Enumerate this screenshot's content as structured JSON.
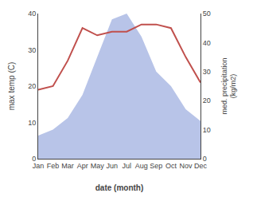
{
  "chart_data": {
    "type": "line",
    "xlabel": "date (month)",
    "ylabel": "max temp (C)",
    "y2label": "med. precipitation\n(kg/m2)",
    "categories": [
      "Jan",
      "Feb",
      "Mar",
      "Apr",
      "May",
      "Jun",
      "Jul",
      "Aug",
      "Sep",
      "Oct",
      "Nov",
      "Dec"
    ],
    "series": [
      {
        "type": "area",
        "axis": "y2",
        "color": "#b8c4e8",
        "values": [
          8,
          10,
          14,
          22,
          35,
          48,
          50,
          42,
          30,
          25,
          17,
          13
        ]
      },
      {
        "type": "line",
        "color": "#c0504d",
        "values": [
          19,
          20,
          27,
          36,
          34,
          35,
          35,
          37,
          37,
          36,
          28,
          21
        ]
      }
    ],
    "ylim": [
      0,
      40
    ],
    "yticks": [
      0,
      10,
      20,
      30,
      40
    ],
    "y2lim": [
      0,
      50
    ],
    "y2ticks": [
      0,
      10,
      20,
      30,
      40,
      50
    ],
    "grid": false
  }
}
